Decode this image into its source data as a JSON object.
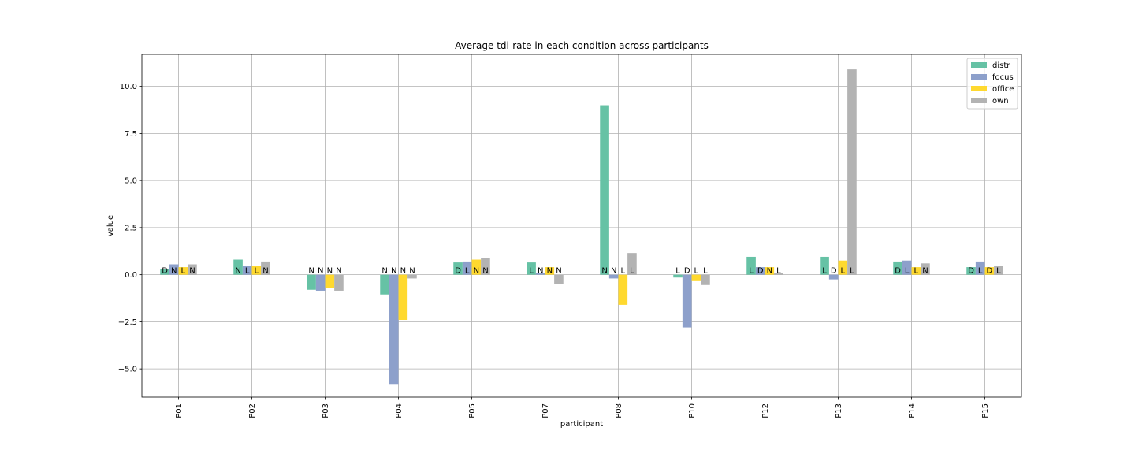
{
  "chart_data": {
    "type": "bar",
    "title": "Average tdi-rate in each condition across participants",
    "xlabel": "participant",
    "ylabel": "value",
    "ylim": [
      -6.5,
      11.7
    ],
    "yticks": [
      -5.0,
      -2.5,
      0.0,
      2.5,
      5.0,
      7.5,
      10.0
    ],
    "ytick_labels": [
      "−5.0",
      "−2.5",
      "0.0",
      "2.5",
      "5.0",
      "7.5",
      "10.0"
    ],
    "grid": true,
    "legend_position": "top-right",
    "categories": [
      "P01",
      "P02",
      "P03",
      "P04",
      "P05",
      "P07",
      "P08",
      "P10",
      "P12",
      "P13",
      "P14",
      "P15"
    ],
    "series": [
      {
        "name": "distr",
        "color": "#66c2a5",
        "values": [
          0.3,
          0.8,
          -0.8,
          -1.05,
          0.65,
          0.65,
          9.0,
          -0.15,
          0.95,
          0.95,
          0.7,
          0.4
        ],
        "labels": [
          "D",
          "N",
          "N",
          "N",
          "D",
          "L",
          "N",
          "L",
          "L",
          "L",
          "D",
          "D"
        ]
      },
      {
        "name": "focus",
        "color": "#8da0cb",
        "values": [
          0.55,
          0.45,
          -0.85,
          -5.8,
          0.7,
          0.1,
          -0.2,
          -2.8,
          0.4,
          -0.25,
          0.75,
          0.7
        ],
        "labels": [
          "N",
          "L",
          "N",
          "N",
          "L",
          "N",
          "N",
          "D",
          "D",
          "D",
          "L",
          "L"
        ]
      },
      {
        "name": "office",
        "color": "#ffd92f",
        "values": [
          0.4,
          0.45,
          -0.7,
          -2.4,
          0.8,
          0.4,
          -1.6,
          -0.3,
          0.4,
          0.75,
          0.4,
          0.4
        ],
        "labels": [
          "L",
          "L",
          "N",
          "N",
          "N",
          "N",
          "L",
          "L",
          "N",
          "L",
          "L",
          "D"
        ]
      },
      {
        "name": "own",
        "color": "#b3b3b3",
        "values": [
          0.55,
          0.7,
          -0.85,
          -0.2,
          0.9,
          -0.5,
          1.15,
          -0.55,
          0.1,
          10.9,
          0.6,
          0.45
        ],
        "labels": [
          "N",
          "N",
          "N",
          "N",
          "N",
          "N",
          "L",
          "L",
          "L",
          "L",
          "N",
          "L"
        ]
      }
    ]
  }
}
